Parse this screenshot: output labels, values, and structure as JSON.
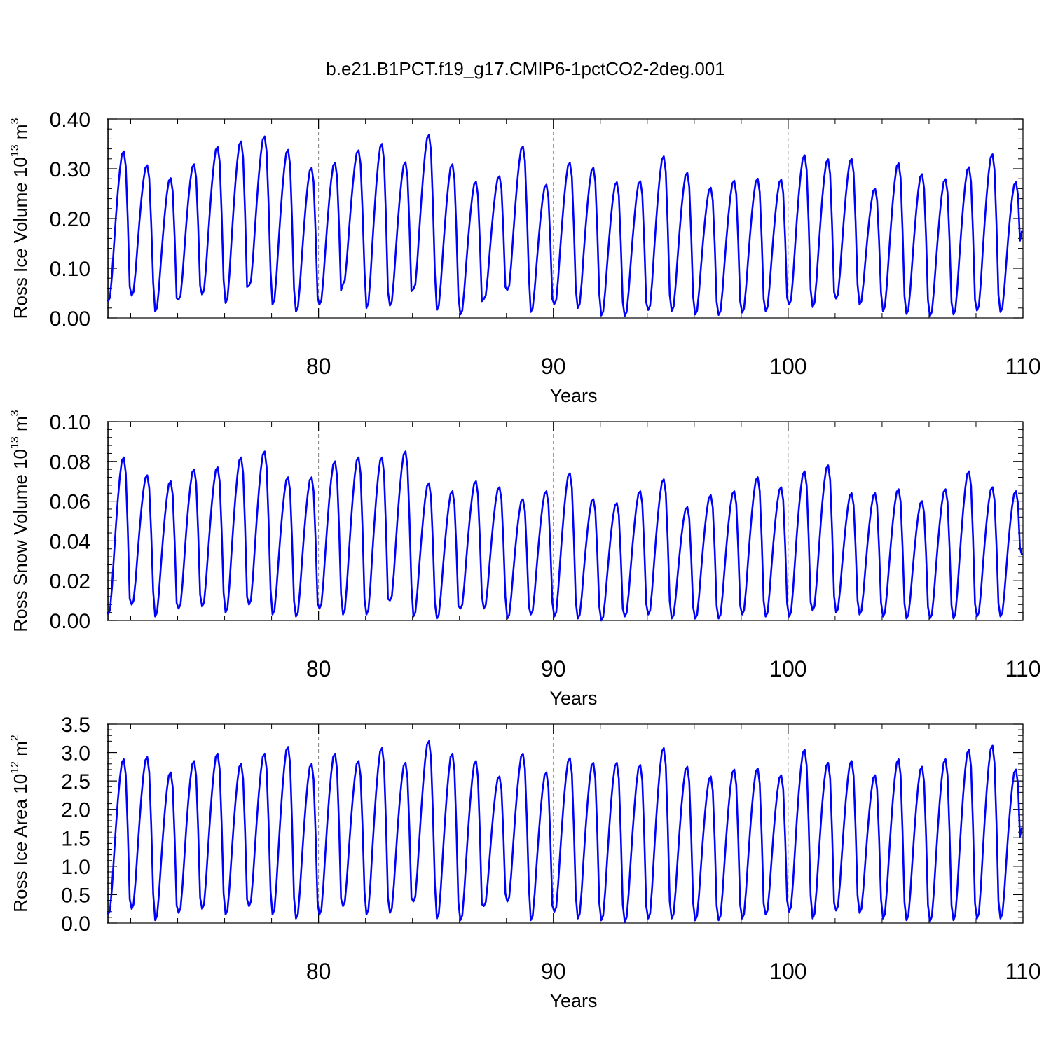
{
  "figure": {
    "title": "b.e21.B1PCT.f19_g17.CMIP6-1pctCO2-2deg.001",
    "line_color": "#0000ff",
    "reference_line_color": "#808080",
    "background": "#ffffff"
  },
  "chart_data": [
    {
      "type": "line",
      "title": "b.e21.B1PCT.f19_g17.CMIP6-1pctCO2-2deg.001",
      "xlabel": "Years",
      "ylabel": "Ross Ice Volume",
      "ylabel_unit_base": "10",
      "ylabel_unit_exp": "13",
      "ylabel_unit_tail": " m",
      "ylabel_unit_tail_exp": "3",
      "xlim": [
        71,
        110
      ],
      "ylim": [
        0,
        0.4
      ],
      "xticks": [
        80,
        90,
        100,
        110
      ],
      "xtick_labels": [
        "80",
        "90",
        "100",
        "110"
      ],
      "yticks": [
        0,
        0.1,
        0.2,
        0.3,
        0.4
      ],
      "ytick_labels": [
        "0.00",
        "0.10",
        "0.20",
        "0.30",
        "0.40"
      ],
      "reference_lines_x": [
        80,
        90,
        100
      ],
      "series": [
        {
          "color": "#0000ff",
          "x_start": 71.04,
          "x_step": 0.08333,
          "annual_max": [
            0.335,
            0.307,
            0.281,
            0.309,
            0.344,
            0.355,
            0.365,
            0.338,
            0.302,
            0.312,
            0.337,
            0.35,
            0.313,
            0.368,
            0.309,
            0.274,
            0.285,
            0.345,
            0.268,
            0.312,
            0.302,
            0.273,
            0.275,
            0.325,
            0.292,
            0.262,
            0.276,
            0.28,
            0.278,
            0.327,
            0.319,
            0.32,
            0.26,
            0.311,
            0.289,
            0.279,
            0.303,
            0.329,
            0.273
          ],
          "annual_min": [
            0.033,
            0.045,
            0.013,
            0.037,
            0.047,
            0.03,
            0.065,
            0.027,
            0.013,
            0.027,
            0.068,
            0.02,
            0.025,
            0.058,
            0.016,
            0.007,
            0.038,
            0.056,
            0.012,
            0.028,
            0.02,
            0.005,
            0.004,
            0.016,
            0.014,
            0.007,
            0.006,
            0.011,
            0.014,
            0.027,
            0.022,
            0.039,
            0.027,
            0.014,
            0.008,
            0.004,
            0.007,
            0.015,
            0.012
          ],
          "last_value": 0.175
        }
      ]
    },
    {
      "type": "line",
      "xlabel": "Years",
      "ylabel": "Ross Snow Volume",
      "ylabel_unit_base": "10",
      "ylabel_unit_exp": "13",
      "ylabel_unit_tail": " m",
      "ylabel_unit_tail_exp": "3",
      "xlim": [
        71,
        110
      ],
      "ylim": [
        0,
        0.1
      ],
      "xticks": [
        80,
        90,
        100,
        110
      ],
      "xtick_labels": [
        "80",
        "90",
        "100",
        "110"
      ],
      "yticks": [
        0,
        0.02,
        0.04,
        0.06,
        0.08,
        0.1
      ],
      "ytick_labels": [
        "0.00",
        "0.02",
        "0.04",
        "0.06",
        "0.08",
        "0.10"
      ],
      "reference_lines_x": [
        80,
        90,
        100
      ],
      "series": [
        {
          "color": "#0000ff",
          "x_start": 71.04,
          "x_step": 0.08333,
          "annual_max": [
            0.082,
            0.073,
            0.07,
            0.076,
            0.077,
            0.082,
            0.085,
            0.072,
            0.072,
            0.08,
            0.082,
            0.082,
            0.085,
            0.069,
            0.065,
            0.07,
            0.067,
            0.061,
            0.065,
            0.074,
            0.061,
            0.059,
            0.065,
            0.071,
            0.057,
            0.063,
            0.065,
            0.072,
            0.067,
            0.075,
            0.078,
            0.064,
            0.064,
            0.066,
            0.06,
            0.066,
            0.075,
            0.067,
            0.065
          ],
          "annual_min": [
            0.003,
            0.008,
            0.002,
            0.006,
            0.007,
            0.004,
            0.008,
            0.003,
            0.002,
            0.006,
            0.003,
            0.003,
            0.01,
            0.002,
            0.001,
            0.006,
            0.006,
            0.001,
            0.003,
            0.002,
            0.001,
            0.0,
            0.002,
            0.003,
            0.001,
            0.001,
            0.001,
            0.003,
            0.002,
            0.002,
            0.005,
            0.004,
            0.003,
            0.002,
            0.001,
            0.001,
            0.001,
            0.002,
            0.002
          ],
          "last_value": 0.033
        }
      ]
    },
    {
      "type": "line",
      "xlabel": "Years",
      "ylabel": "Ross Ice Area",
      "ylabel_unit_base": "10",
      "ylabel_unit_exp": "12",
      "ylabel_unit_tail": " m",
      "ylabel_unit_tail_exp": "2",
      "xlim": [
        71,
        110
      ],
      "ylim": [
        0,
        3.5
      ],
      "xticks": [
        80,
        90,
        100,
        110
      ],
      "xtick_labels": [
        "80",
        "90",
        "100",
        "110"
      ],
      "yticks": [
        0,
        0.5,
        1,
        1.5,
        2,
        2.5,
        3,
        3.5
      ],
      "ytick_labels": [
        "0.0",
        "0.5",
        "1.0",
        "1.5",
        "2.0",
        "2.5",
        "3.0",
        "3.5"
      ],
      "reference_lines_x": [
        80,
        90,
        100
      ],
      "series": [
        {
          "color": "#0000ff",
          "x_start": 71.04,
          "x_step": 0.08333,
          "annual_max": [
            2.88,
            2.92,
            2.65,
            2.85,
            2.98,
            2.8,
            2.98,
            3.1,
            2.8,
            2.98,
            2.85,
            3.08,
            2.82,
            3.2,
            2.98,
            2.85,
            2.58,
            2.98,
            2.65,
            2.9,
            2.82,
            2.82,
            2.78,
            3.08,
            2.75,
            2.58,
            2.7,
            2.72,
            2.6,
            3.05,
            2.82,
            2.85,
            2.6,
            2.88,
            2.75,
            2.88,
            3.05,
            3.12,
            2.7
          ],
          "annual_min": [
            0.15,
            0.25,
            0.05,
            0.18,
            0.25,
            0.15,
            0.3,
            0.15,
            0.08,
            0.15,
            0.3,
            0.15,
            0.18,
            0.38,
            0.08,
            0.05,
            0.3,
            0.38,
            0.05,
            0.2,
            0.08,
            0.05,
            0.02,
            0.08,
            0.08,
            0.05,
            0.05,
            0.08,
            0.15,
            0.2,
            0.08,
            0.22,
            0.18,
            0.08,
            0.05,
            0.03,
            0.05,
            0.08,
            0.08
          ],
          "last_value": 1.68
        }
      ]
    }
  ]
}
